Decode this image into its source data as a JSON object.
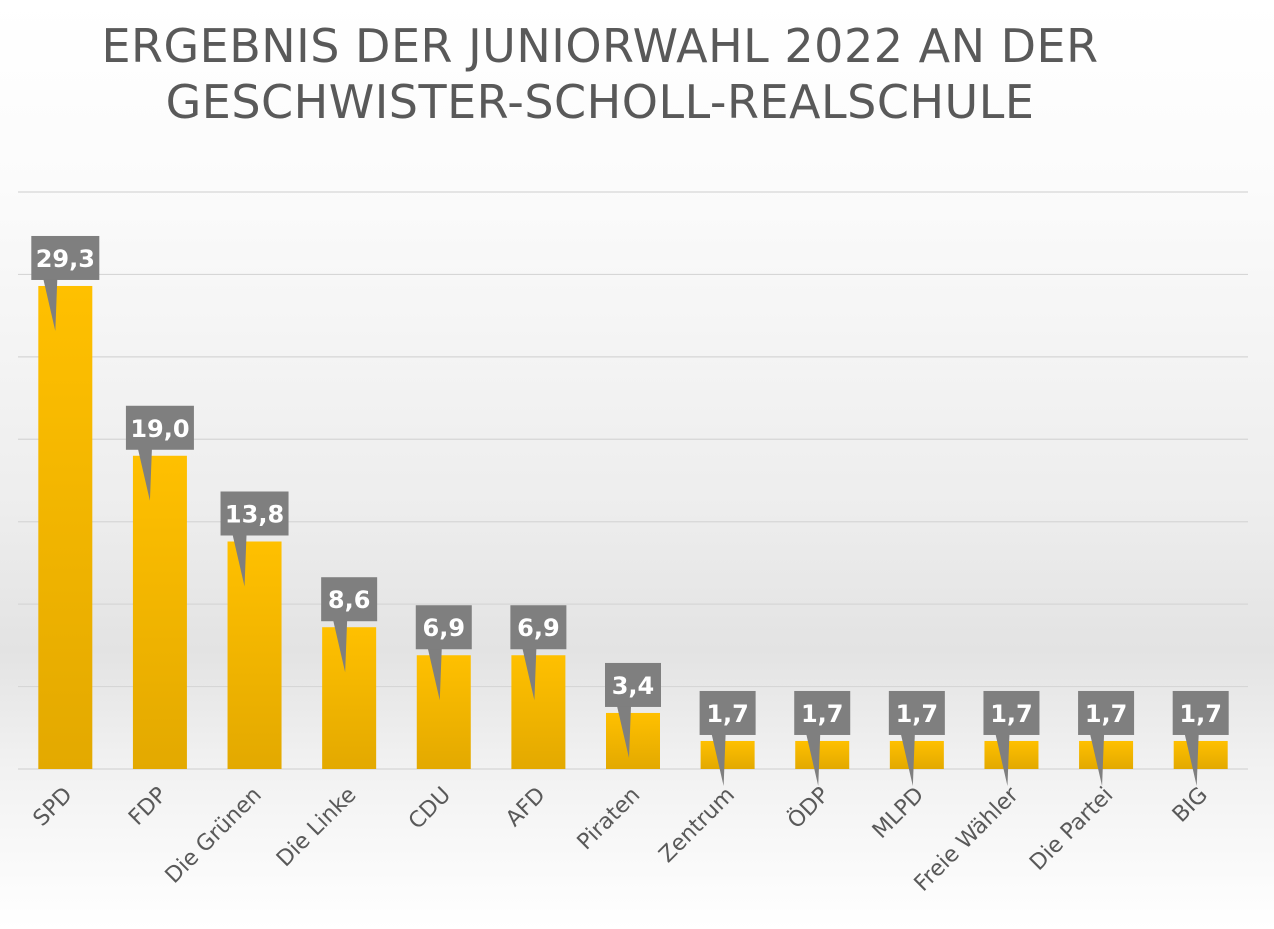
{
  "chart_data": {
    "type": "bar",
    "title_lines": [
      "ERGEBNIS DER JUNIORWAHL 2022 AN DER",
      "GESCHWISTER-SCHOLL-REALSCHULE"
    ],
    "categories": [
      "SPD",
      "FDP",
      "Die Grünen",
      "Die Linke",
      "CDU",
      "AFD",
      "Piraten",
      "Zentrum",
      "ÖDP",
      "MLPD",
      "Freie Wähler",
      "Die Partei",
      "BIG"
    ],
    "values": [
      29.3,
      19.0,
      13.8,
      8.6,
      6.9,
      6.9,
      3.4,
      1.7,
      1.7,
      1.7,
      1.7,
      1.7,
      1.7
    ],
    "value_labels": [
      "29,3",
      "19,0",
      "13,8",
      "8,6",
      "6,9",
      "6,9",
      "3,4",
      "1,7",
      "1,7",
      "1,7",
      "1,7",
      "1,7",
      "1,7"
    ],
    "ylim": [
      0,
      35
    ],
    "grid": true,
    "legend": "none",
    "colors": {
      "bar_top": "#ffc000",
      "bar_bottom": "#e3a900",
      "label_box": "#7f7f7f",
      "label_text": "#ffffff",
      "grid": "#d6d6d6",
      "axis_text": "#595959",
      "title": "#595959"
    }
  }
}
